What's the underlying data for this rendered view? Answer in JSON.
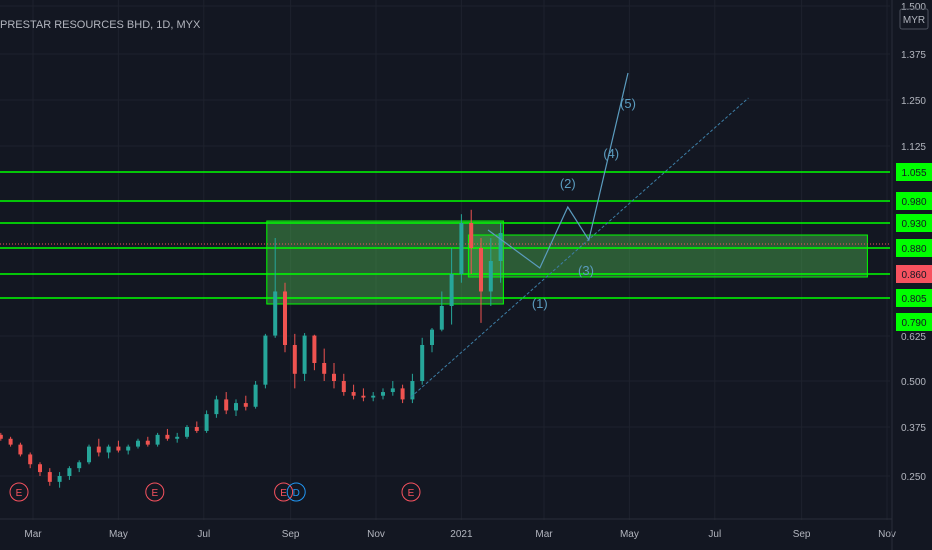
{
  "chart_data": {
    "type": "candlestick",
    "title": "PRESTAR RESOURCES BHD, 1D, MYX",
    "currency": "MYR",
    "x_ticks": [
      "Mar",
      "May",
      "Jul",
      "Sep",
      "Nov",
      "2021",
      "Mar",
      "May",
      "Jul",
      "Sep",
      "Nov"
    ],
    "y_ticks": [
      "1.500",
      "1.375",
      "1.250",
      "1.125",
      "0.625",
      "0.500",
      "0.375",
      "0.250"
    ],
    "price_tags": [
      {
        "label": "1.055",
        "value": 1.055,
        "color": "#00ff00"
      },
      {
        "label": "0.980",
        "value": 0.98,
        "color": "#00ff00"
      },
      {
        "label": "0.930",
        "value": 0.93,
        "color": "#00ff00"
      },
      {
        "label": "0.880",
        "value": 0.88,
        "color": "#00ff00"
      },
      {
        "label": "0.860",
        "value": 0.86,
        "color": "#f7525f"
      },
      {
        "label": "0.805",
        "value": 0.805,
        "color": "#00ff00"
      },
      {
        "label": "0.790",
        "value": 0.79,
        "color": "#00ff00"
      }
    ],
    "horizontal_lines": [
      1.055,
      0.98,
      0.93,
      0.88,
      0.86,
      0.805
    ],
    "current_price": 0.86,
    "wave_labels": [
      "(1)",
      "(2)",
      "(3)",
      "(4)",
      "(5)"
    ],
    "event_markers": [
      {
        "label": "E",
        "date": "2020-02-20"
      },
      {
        "label": "E",
        "date": "2020-05-27"
      },
      {
        "label": "E",
        "date": "2020-08-27"
      },
      {
        "label": "D",
        "date": "2020-09-05"
      },
      {
        "label": "E",
        "date": "2020-11-26"
      }
    ],
    "candles": [
      [
        "2020-01-10",
        0.385,
        0.39,
        0.375,
        0.38
      ],
      [
        "2020-01-17",
        0.38,
        0.385,
        0.37,
        0.375
      ],
      [
        "2020-01-24",
        0.375,
        0.38,
        0.365,
        0.37
      ],
      [
        "2020-01-31",
        0.37,
        0.372,
        0.35,
        0.355
      ],
      [
        "2020-02-07",
        0.355,
        0.36,
        0.34,
        0.345
      ],
      [
        "2020-02-14",
        0.345,
        0.35,
        0.325,
        0.33
      ],
      [
        "2020-02-21",
        0.33,
        0.335,
        0.3,
        0.305
      ],
      [
        "2020-02-28",
        0.305,
        0.31,
        0.27,
        0.28
      ],
      [
        "2020-03-06",
        0.28,
        0.285,
        0.25,
        0.26
      ],
      [
        "2020-03-13",
        0.26,
        0.27,
        0.225,
        0.235
      ],
      [
        "2020-03-20",
        0.235,
        0.26,
        0.22,
        0.25
      ],
      [
        "2020-03-27",
        0.25,
        0.275,
        0.24,
        0.27
      ],
      [
        "2020-04-03",
        0.27,
        0.29,
        0.26,
        0.285
      ],
      [
        "2020-04-10",
        0.285,
        0.33,
        0.28,
        0.325
      ],
      [
        "2020-04-17",
        0.325,
        0.345,
        0.3,
        0.31
      ],
      [
        "2020-04-24",
        0.31,
        0.33,
        0.295,
        0.325
      ],
      [
        "2020-05-01",
        0.325,
        0.34,
        0.31,
        0.315
      ],
      [
        "2020-05-08",
        0.315,
        0.33,
        0.305,
        0.325
      ],
      [
        "2020-05-15",
        0.325,
        0.345,
        0.32,
        0.34
      ],
      [
        "2020-05-22",
        0.34,
        0.35,
        0.325,
        0.33
      ],
      [
        "2020-05-29",
        0.33,
        0.36,
        0.325,
        0.355
      ],
      [
        "2020-06-05",
        0.355,
        0.37,
        0.34,
        0.345
      ],
      [
        "2020-06-12",
        0.345,
        0.36,
        0.335,
        0.35
      ],
      [
        "2020-06-19",
        0.35,
        0.38,
        0.345,
        0.375
      ],
      [
        "2020-06-26",
        0.375,
        0.39,
        0.36,
        0.365
      ],
      [
        "2020-07-03",
        0.365,
        0.42,
        0.36,
        0.41
      ],
      [
        "2020-07-10",
        0.41,
        0.46,
        0.4,
        0.45
      ],
      [
        "2020-07-17",
        0.45,
        0.47,
        0.41,
        0.42
      ],
      [
        "2020-07-24",
        0.42,
        0.45,
        0.405,
        0.44
      ],
      [
        "2020-07-31",
        0.44,
        0.46,
        0.42,
        0.43
      ],
      [
        "2020-08-07",
        0.43,
        0.5,
        0.425,
        0.49
      ],
      [
        "2020-08-14",
        0.49,
        0.65,
        0.48,
        0.63
      ],
      [
        "2020-08-21",
        0.63,
        0.9,
        0.62,
        0.82
      ],
      [
        "2020-08-28",
        0.82,
        0.84,
        0.58,
        0.6
      ],
      [
        "2020-09-04",
        0.6,
        0.65,
        0.48,
        0.52
      ],
      [
        "2020-09-11",
        0.52,
        0.66,
        0.5,
        0.63
      ],
      [
        "2020-09-18",
        0.63,
        0.64,
        0.53,
        0.55
      ],
      [
        "2020-09-25",
        0.55,
        0.59,
        0.5,
        0.52
      ],
      [
        "2020-10-02",
        0.52,
        0.55,
        0.48,
        0.5
      ],
      [
        "2020-10-09",
        0.5,
        0.52,
        0.46,
        0.47
      ],
      [
        "2020-10-16",
        0.47,
        0.49,
        0.45,
        0.46
      ],
      [
        "2020-10-23",
        0.46,
        0.48,
        0.445,
        0.455
      ],
      [
        "2020-10-30",
        0.455,
        0.47,
        0.445,
        0.46
      ],
      [
        "2020-11-06",
        0.46,
        0.48,
        0.45,
        0.47
      ],
      [
        "2020-11-13",
        0.47,
        0.5,
        0.46,
        0.48
      ],
      [
        "2020-11-20",
        0.48,
        0.49,
        0.44,
        0.45
      ],
      [
        "2020-11-27",
        0.45,
        0.52,
        0.44,
        0.5
      ],
      [
        "2020-12-04",
        0.5,
        0.62,
        0.49,
        0.6
      ],
      [
        "2020-12-11",
        0.6,
        0.72,
        0.58,
        0.7
      ],
      [
        "2020-12-18",
        0.7,
        0.82,
        0.68,
        0.8
      ],
      [
        "2020-12-25",
        0.8,
        0.88,
        0.76,
        0.86
      ],
      [
        "2021-01-01",
        0.86,
        0.95,
        0.84,
        0.93
      ],
      [
        "2021-01-08",
        0.93,
        0.96,
        0.86,
        0.88
      ],
      [
        "2021-01-15",
        0.88,
        0.9,
        0.78,
        0.82
      ],
      [
        "2021-01-22",
        0.82,
        0.9,
        0.8,
        0.87
      ],
      [
        "2021-01-29",
        0.87,
        0.93,
        0.84,
        0.91
      ]
    ]
  }
}
